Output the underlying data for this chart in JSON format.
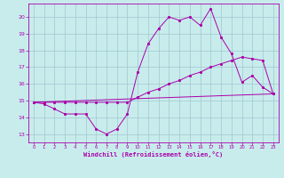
{
  "xlabel": "Windchill (Refroidissement éolien,°C)",
  "background_color": "#c8ecec",
  "grid_color": "#a0c8d0",
  "line_color": "#aa00aa",
  "xlim": [
    -0.5,
    23.5
  ],
  "ylim": [
    12.5,
    20.8
  ],
  "yticks": [
    13,
    14,
    15,
    16,
    17,
    18,
    19,
    20
  ],
  "xticks": [
    0,
    1,
    2,
    3,
    4,
    5,
    6,
    7,
    8,
    9,
    10,
    11,
    12,
    13,
    14,
    15,
    16,
    17,
    18,
    19,
    20,
    21,
    22,
    23
  ],
  "line1_x": [
    0,
    1,
    2,
    3,
    4,
    5,
    6,
    7,
    8,
    9,
    10,
    11,
    12,
    13,
    14,
    15,
    16,
    17,
    18,
    19,
    20,
    21,
    22,
    23
  ],
  "line1_y": [
    14.9,
    14.8,
    14.5,
    14.2,
    14.2,
    14.2,
    13.3,
    13.0,
    13.3,
    14.2,
    16.7,
    18.4,
    19.3,
    20.0,
    19.8,
    20.0,
    19.5,
    20.5,
    18.8,
    17.8,
    16.1,
    16.5,
    15.8,
    15.4
  ],
  "line2_x": [
    0,
    1,
    2,
    3,
    4,
    5,
    6,
    7,
    8,
    9,
    10,
    11,
    12,
    13,
    14,
    15,
    16,
    17,
    18,
    19,
    20,
    21,
    22,
    23
  ],
  "line2_y": [
    14.9,
    14.9,
    14.9,
    14.9,
    14.9,
    14.9,
    14.9,
    14.9,
    14.9,
    14.9,
    15.2,
    15.5,
    15.7,
    16.0,
    16.2,
    16.5,
    16.7,
    17.0,
    17.2,
    17.4,
    17.6,
    17.5,
    17.4,
    15.4
  ],
  "line3_x": [
    0,
    23
  ],
  "line3_y": [
    14.9,
    15.4
  ]
}
